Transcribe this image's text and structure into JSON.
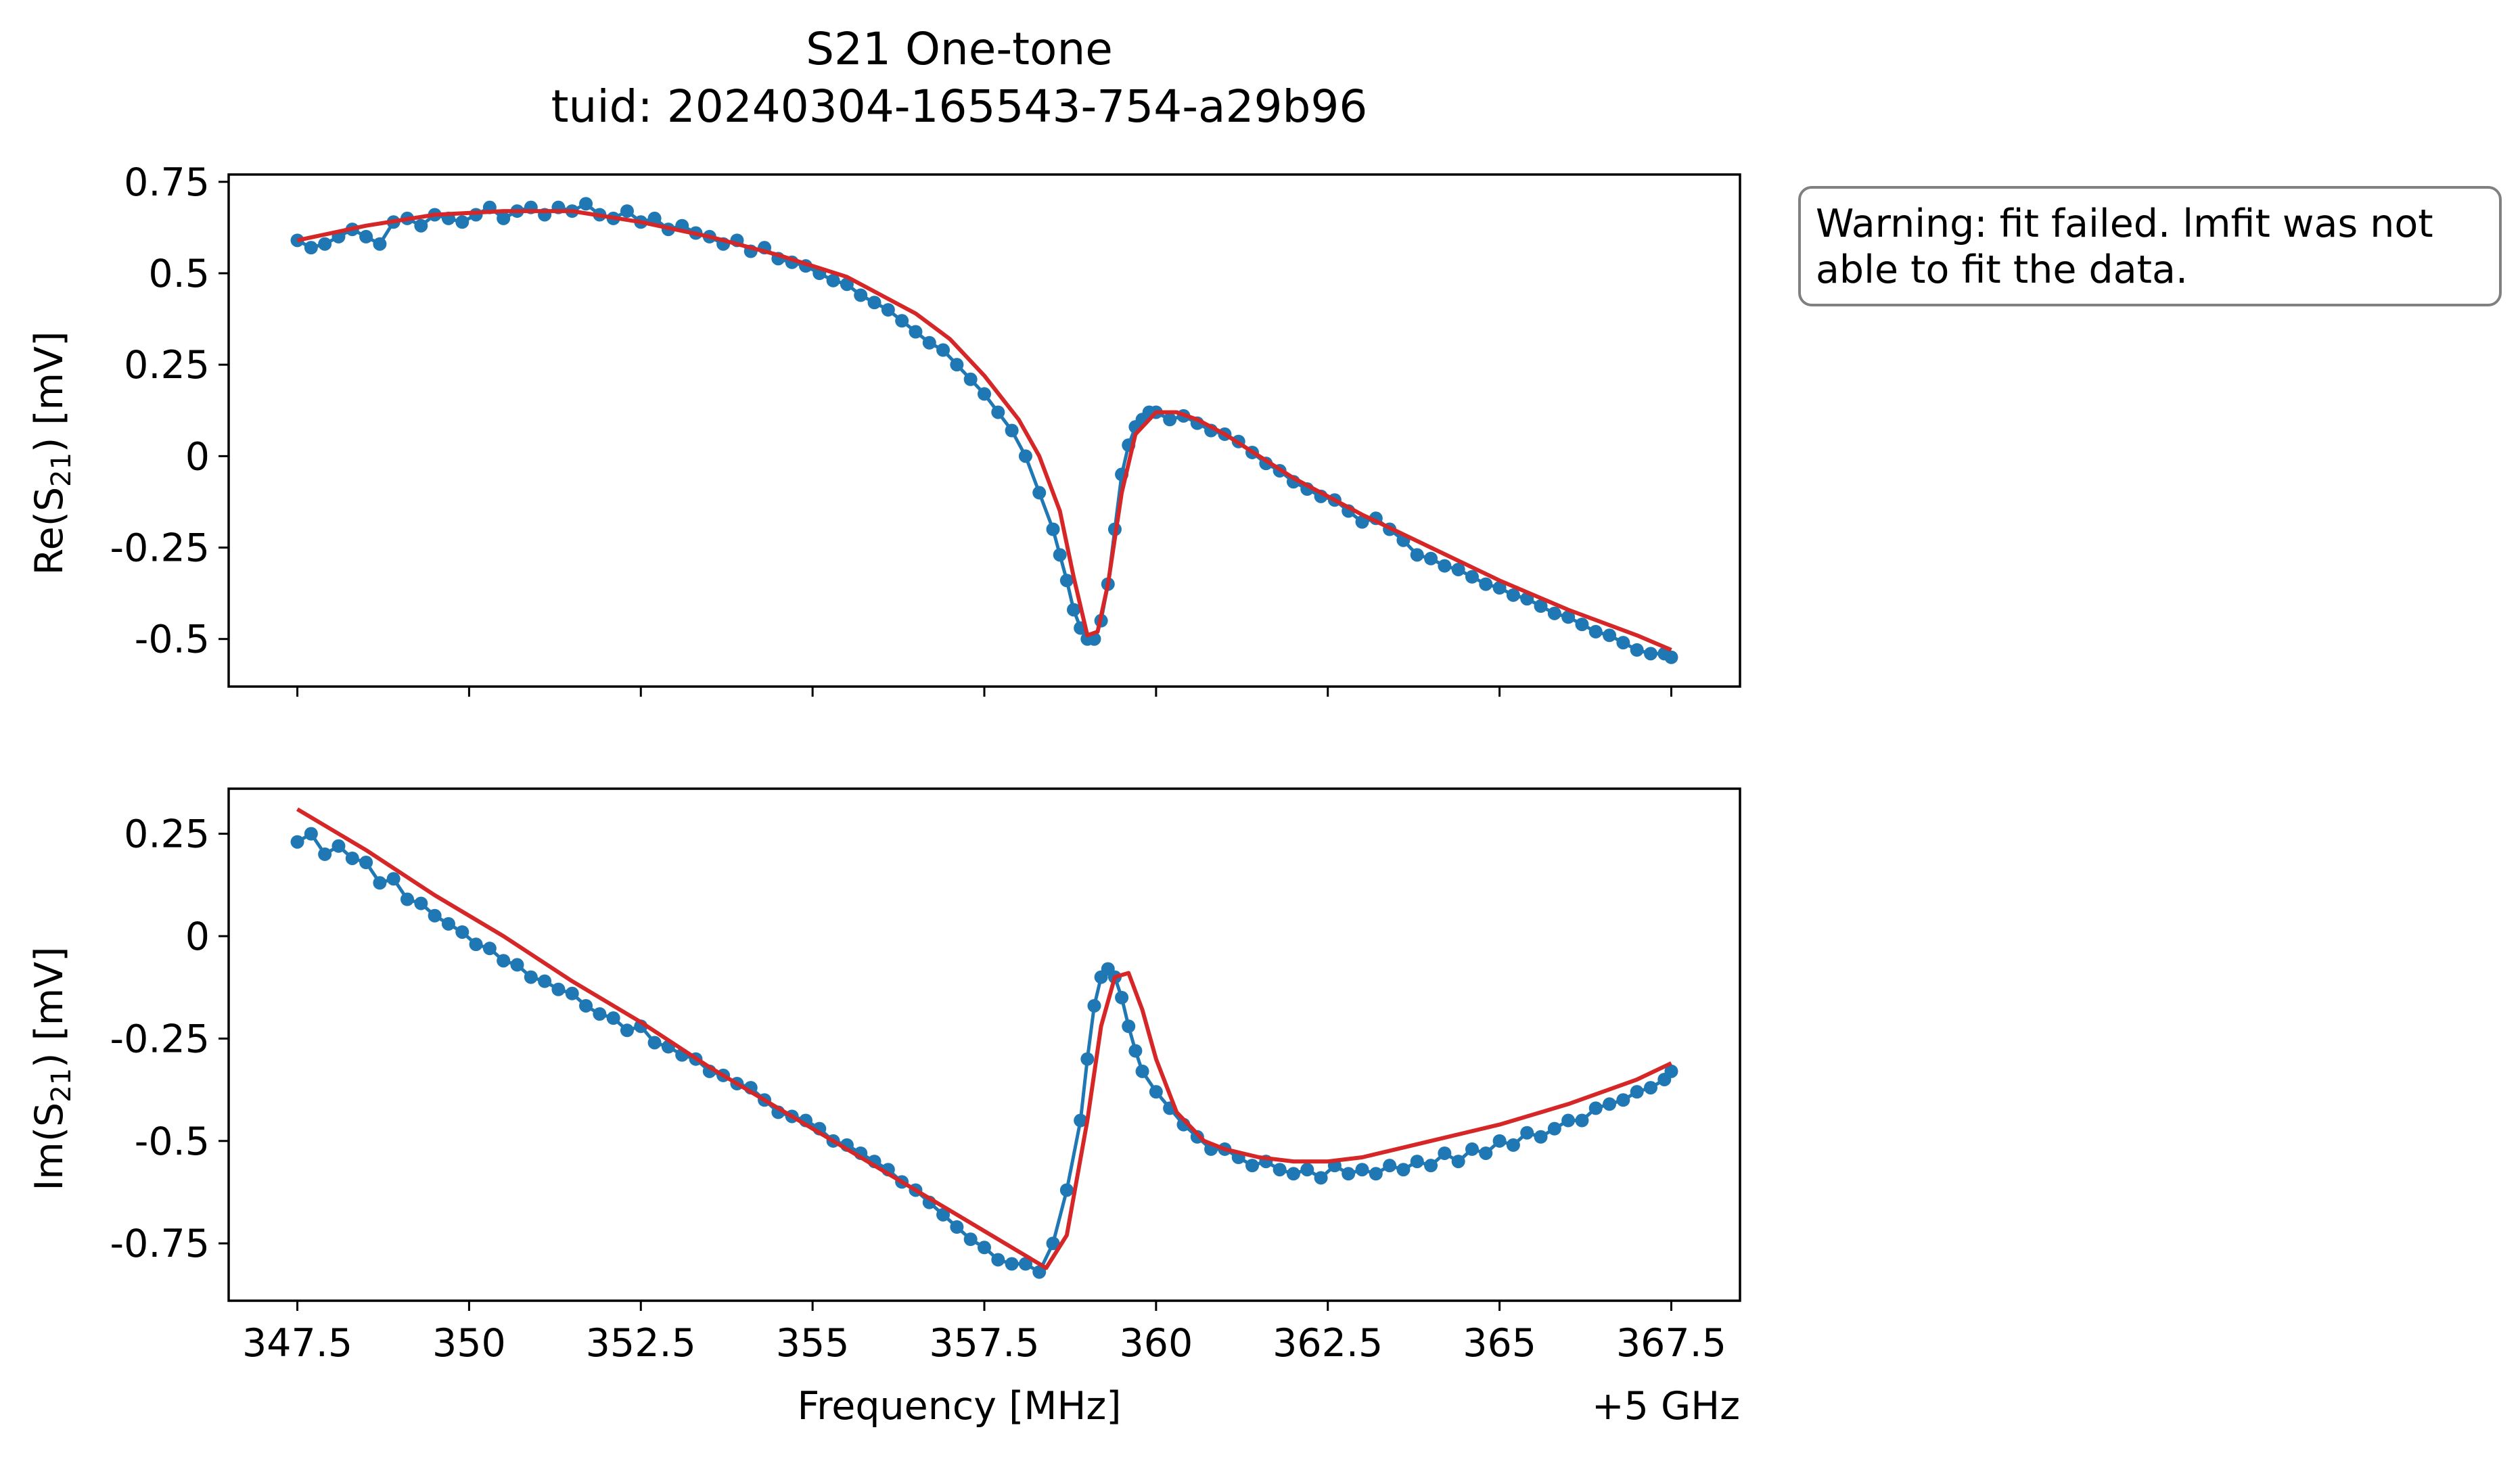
{
  "figure": {
    "title": "S21 One-tone",
    "subtitle": "tuid: 20240304-165543-754-a29b96",
    "xlabel": "Frequency [MHz]",
    "x_offset_label": "+5 GHz",
    "warning": "Warning: fit failed. lmfit was not\nable to fit the data."
  },
  "chart_data": [
    {
      "type": "line",
      "panel": "top",
      "ylabel": "Re(S21) [mV]",
      "xlim": [
        346.5,
        368.5
      ],
      "ylim": [
        -0.63,
        0.77
      ],
      "xticks": [
        347.5,
        350,
        352.5,
        355,
        357.5,
        360,
        362.5,
        365,
        367.5
      ],
      "xtick_labels": [],
      "yticks": [
        0.75,
        0.5,
        0.25,
        0,
        -0.25,
        -0.5
      ],
      "ytick_labels": [
        "0.75",
        "0.5",
        "0.25",
        "0",
        "-0.25",
        "-0.5"
      ],
      "series": [
        {
          "color": "#1f77b4",
          "marker": "circle",
          "x": [
            347.5,
            347.7,
            347.9,
            348.1,
            348.3,
            348.5,
            348.7,
            348.9,
            349.1,
            349.3,
            349.5,
            349.7,
            349.9,
            350.1,
            350.3,
            350.5,
            350.7,
            350.9,
            351.1,
            351.3,
            351.5,
            351.7,
            351.9,
            352.1,
            352.3,
            352.5,
            352.7,
            352.9,
            353.1,
            353.3,
            353.5,
            353.7,
            353.9,
            354.1,
            354.3,
            354.5,
            354.7,
            354.9,
            355.1,
            355.3,
            355.5,
            355.7,
            355.9,
            356.1,
            356.3,
            356.5,
            356.7,
            356.9,
            357.1,
            357.3,
            357.5,
            357.7,
            357.9,
            358.1,
            358.3,
            358.5,
            358.6,
            358.7,
            358.8,
            358.9,
            359.0,
            359.1,
            359.2,
            359.3,
            359.4,
            359.5,
            359.6,
            359.7,
            359.8,
            359.9,
            360.0,
            360.2,
            360.4,
            360.6,
            360.8,
            361.0,
            361.2,
            361.4,
            361.6,
            361.8,
            362.0,
            362.2,
            362.4,
            362.6,
            362.8,
            363.0,
            363.2,
            363.4,
            363.6,
            363.8,
            364.0,
            364.2,
            364.4,
            364.6,
            364.8,
            365.0,
            365.2,
            365.4,
            365.6,
            365.8,
            366.0,
            366.2,
            366.4,
            366.6,
            366.8,
            367.0,
            367.2,
            367.4,
            367.5
          ],
          "y": [
            0.59,
            0.57,
            0.58,
            0.6,
            0.62,
            0.6,
            0.58,
            0.64,
            0.65,
            0.63,
            0.66,
            0.65,
            0.64,
            0.66,
            0.68,
            0.65,
            0.67,
            0.68,
            0.66,
            0.68,
            0.67,
            0.69,
            0.66,
            0.65,
            0.67,
            0.64,
            0.65,
            0.62,
            0.63,
            0.61,
            0.6,
            0.58,
            0.59,
            0.56,
            0.57,
            0.54,
            0.53,
            0.52,
            0.5,
            0.48,
            0.47,
            0.44,
            0.42,
            0.4,
            0.37,
            0.34,
            0.31,
            0.29,
            0.25,
            0.21,
            0.17,
            0.12,
            0.07,
            0.0,
            -0.1,
            -0.2,
            -0.27,
            -0.34,
            -0.42,
            -0.47,
            -0.5,
            -0.5,
            -0.45,
            -0.35,
            -0.2,
            -0.05,
            0.03,
            0.08,
            0.1,
            0.12,
            0.12,
            0.1,
            0.11,
            0.09,
            0.07,
            0.06,
            0.04,
            0.01,
            -0.02,
            -0.04,
            -0.07,
            -0.09,
            -0.11,
            -0.12,
            -0.15,
            -0.18,
            -0.17,
            -0.2,
            -0.23,
            -0.27,
            -0.28,
            -0.3,
            -0.31,
            -0.33,
            -0.35,
            -0.36,
            -0.38,
            -0.39,
            -0.41,
            -0.43,
            -0.44,
            -0.46,
            -0.48,
            -0.49,
            -0.51,
            -0.53,
            -0.54,
            -0.54,
            -0.55
          ]
        },
        {
          "color": "#d62728",
          "marker": "none",
          "x": [
            347.5,
            348.5,
            349.5,
            350.5,
            351.5,
            352.5,
            353.5,
            354.5,
            355.5,
            356.5,
            357.0,
            357.5,
            358.0,
            358.3,
            358.6,
            358.8,
            359.0,
            359.15,
            359.3,
            359.5,
            359.7,
            360.0,
            360.3,
            360.6,
            361.0,
            361.5,
            362.0,
            362.5,
            363.0,
            364.0,
            365.0,
            366.0,
            367.0,
            367.5
          ],
          "y": [
            0.59,
            0.63,
            0.66,
            0.67,
            0.67,
            0.64,
            0.6,
            0.55,
            0.49,
            0.39,
            0.32,
            0.22,
            0.1,
            0.0,
            -0.15,
            -0.33,
            -0.49,
            -0.48,
            -0.35,
            -0.1,
            0.06,
            0.12,
            0.12,
            0.1,
            0.06,
            0.0,
            -0.06,
            -0.11,
            -0.16,
            -0.25,
            -0.34,
            -0.42,
            -0.49,
            -0.53
          ]
        }
      ]
    },
    {
      "type": "line",
      "panel": "bottom",
      "ylabel": "Im(S21) [mV]",
      "xlim": [
        346.5,
        368.5
      ],
      "ylim": [
        -0.89,
        0.36
      ],
      "xticks": [
        347.5,
        350,
        352.5,
        355,
        357.5,
        360,
        362.5,
        365,
        367.5
      ],
      "xtick_labels": [
        "347.5",
        "350",
        "352.5",
        "355",
        "357.5",
        "360",
        "362.5",
        "365",
        "367.5"
      ],
      "yticks": [
        0.25,
        0,
        -0.25,
        -0.5,
        -0.75
      ],
      "ytick_labels": [
        "0.25",
        "0",
        "-0.25",
        "-0.5",
        "-0.75"
      ],
      "series": [
        {
          "color": "#1f77b4",
          "marker": "circle",
          "x": [
            347.5,
            347.7,
            347.9,
            348.1,
            348.3,
            348.5,
            348.7,
            348.9,
            349.1,
            349.3,
            349.5,
            349.7,
            349.9,
            350.1,
            350.3,
            350.5,
            350.7,
            350.9,
            351.1,
            351.3,
            351.5,
            351.7,
            351.9,
            352.1,
            352.3,
            352.5,
            352.7,
            352.9,
            353.1,
            353.3,
            353.5,
            353.7,
            353.9,
            354.1,
            354.3,
            354.5,
            354.7,
            354.9,
            355.1,
            355.3,
            355.5,
            355.7,
            355.9,
            356.1,
            356.3,
            356.5,
            356.7,
            356.9,
            357.1,
            357.3,
            357.5,
            357.7,
            357.9,
            358.1,
            358.3,
            358.5,
            358.7,
            358.9,
            359.0,
            359.1,
            359.2,
            359.3,
            359.4,
            359.5,
            359.6,
            359.7,
            359.8,
            360.0,
            360.2,
            360.4,
            360.6,
            360.8,
            361.0,
            361.2,
            361.4,
            361.6,
            361.8,
            362.0,
            362.2,
            362.4,
            362.6,
            362.8,
            363.0,
            363.2,
            363.4,
            363.6,
            363.8,
            364.0,
            364.2,
            364.4,
            364.6,
            364.8,
            365.0,
            365.2,
            365.4,
            365.6,
            365.8,
            366.0,
            366.2,
            366.4,
            366.6,
            366.8,
            367.0,
            367.2,
            367.4,
            367.5
          ],
          "y": [
            0.23,
            0.25,
            0.2,
            0.22,
            0.19,
            0.18,
            0.13,
            0.14,
            0.09,
            0.08,
            0.05,
            0.03,
            0.01,
            -0.02,
            -0.03,
            -0.06,
            -0.07,
            -0.1,
            -0.11,
            -0.13,
            -0.14,
            -0.17,
            -0.19,
            -0.2,
            -0.23,
            -0.22,
            -0.26,
            -0.27,
            -0.29,
            -0.3,
            -0.33,
            -0.34,
            -0.36,
            -0.37,
            -0.4,
            -0.43,
            -0.44,
            -0.45,
            -0.47,
            -0.5,
            -0.51,
            -0.53,
            -0.55,
            -0.57,
            -0.6,
            -0.62,
            -0.65,
            -0.68,
            -0.71,
            -0.74,
            -0.76,
            -0.79,
            -0.8,
            -0.8,
            -0.82,
            -0.75,
            -0.62,
            -0.45,
            -0.3,
            -0.17,
            -0.1,
            -0.08,
            -0.1,
            -0.15,
            -0.22,
            -0.28,
            -0.33,
            -0.38,
            -0.42,
            -0.46,
            -0.49,
            -0.52,
            -0.52,
            -0.54,
            -0.56,
            -0.55,
            -0.57,
            -0.58,
            -0.57,
            -0.59,
            -0.56,
            -0.58,
            -0.57,
            -0.58,
            -0.56,
            -0.57,
            -0.55,
            -0.56,
            -0.53,
            -0.55,
            -0.52,
            -0.53,
            -0.5,
            -0.51,
            -0.48,
            -0.49,
            -0.47,
            -0.45,
            -0.45,
            -0.42,
            -0.41,
            -0.4,
            -0.38,
            -0.37,
            -0.35,
            -0.33
          ]
        },
        {
          "color": "#d62728",
          "marker": "none",
          "x": [
            347.5,
            348.5,
            349.5,
            350.5,
            351.5,
            352.5,
            353.5,
            354.5,
            355.5,
            356.5,
            357.5,
            358.0,
            358.4,
            358.7,
            359.0,
            359.2,
            359.4,
            359.6,
            359.8,
            360.0,
            360.3,
            360.7,
            361.0,
            361.5,
            362.0,
            362.5,
            363.0,
            363.5,
            364.0,
            365.0,
            366.0,
            367.0,
            367.5
          ],
          "y": [
            0.31,
            0.21,
            0.1,
            0.0,
            -0.11,
            -0.21,
            -0.32,
            -0.42,
            -0.52,
            -0.62,
            -0.72,
            -0.77,
            -0.81,
            -0.73,
            -0.45,
            -0.22,
            -0.1,
            -0.09,
            -0.18,
            -0.3,
            -0.43,
            -0.5,
            -0.52,
            -0.54,
            -0.55,
            -0.55,
            -0.54,
            -0.52,
            -0.5,
            -0.46,
            -0.41,
            -0.35,
            -0.31
          ]
        }
      ]
    }
  ]
}
